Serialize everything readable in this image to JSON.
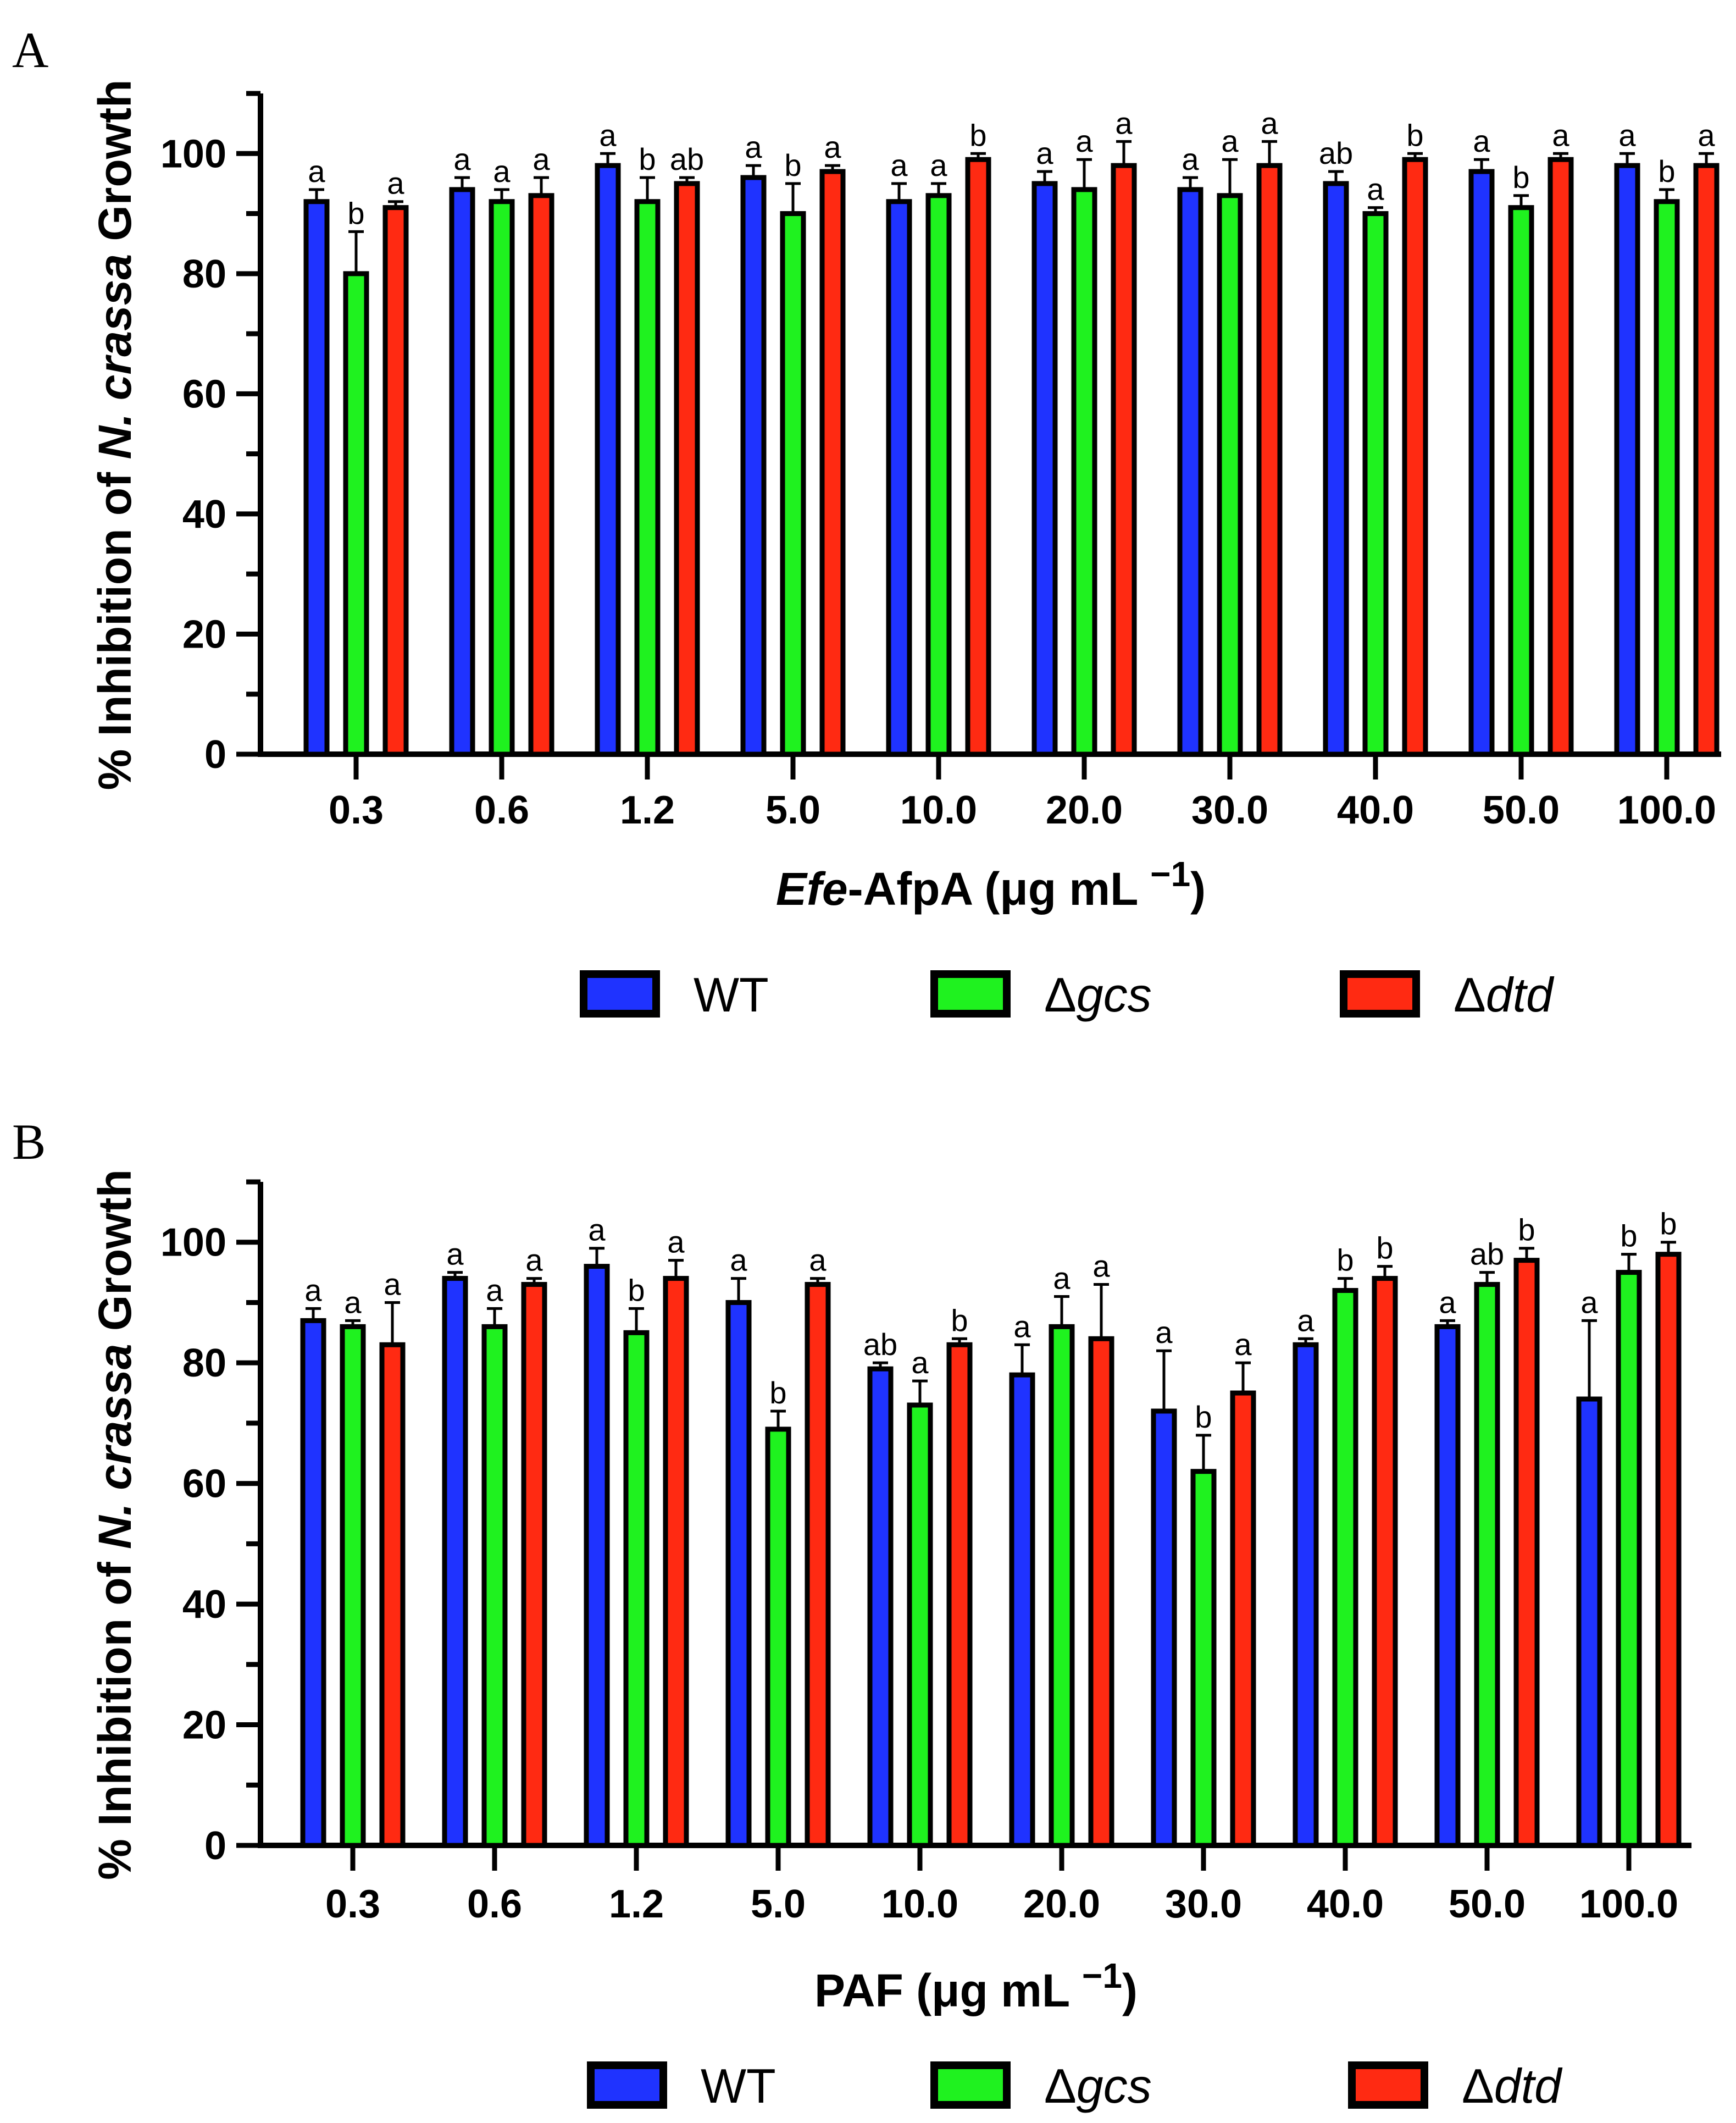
{
  "colors": {
    "WT": "#1f33ff",
    "gcs": "#1ff21f",
    "dtd": "#ff2a12",
    "axis": "#000000"
  },
  "legend": [
    {
      "key": "WT",
      "label": "WT"
    },
    {
      "key": "gcs",
      "label": "Δgcs"
    },
    {
      "key": "dtd",
      "label": "Δdtd"
    }
  ],
  "chart_data": [
    {
      "panel": "A",
      "type": "bar",
      "ylabel": "% Inhibition of N. crassa Growth",
      "xlabel": "Efe-AfpA (μg mL −1)",
      "ylim": [
        0,
        110
      ],
      "yticks": [
        0,
        20,
        40,
        60,
        80,
        100
      ],
      "categories": [
        "0.3",
        "0.6",
        "1.2",
        "5.0",
        "10.0",
        "20.0",
        "30.0",
        "40.0",
        "50.0",
        "100.0"
      ],
      "series": [
        {
          "key": "WT",
          "name": "WT",
          "values": [
            92,
            94,
            98,
            96,
            92,
            95,
            94,
            95,
            97,
            98
          ],
          "errors": [
            2,
            2,
            2,
            2,
            3,
            2,
            2,
            2,
            2,
            2
          ],
          "labels": [
            "a",
            "a",
            "a",
            "a",
            "a",
            "a",
            "a",
            "ab",
            "a",
            "a"
          ]
        },
        {
          "key": "gcs",
          "name": "Δgcs",
          "values": [
            80,
            92,
            92,
            90,
            93,
            94,
            93,
            90,
            91,
            92
          ],
          "errors": [
            7,
            2,
            4,
            5,
            2,
            5,
            6,
            1,
            2,
            2
          ],
          "labels": [
            "b",
            "a",
            "b",
            "b",
            "a",
            "a",
            "a",
            "a",
            "b",
            "b"
          ]
        },
        {
          "key": "dtd",
          "name": "Δdtd",
          "values": [
            91,
            93,
            95,
            97,
            99,
            98,
            98,
            99,
            99,
            98
          ],
          "errors": [
            1,
            3,
            1,
            1,
            1,
            4,
            4,
            1,
            1,
            2
          ],
          "labels": [
            "a",
            "a",
            "ab",
            "a",
            "b",
            "a",
            "a",
            "b",
            "a",
            "a"
          ]
        }
      ]
    },
    {
      "panel": "B",
      "type": "bar",
      "ylabel": "% Inhibition of N. crassa Growth",
      "xlabel": "PAF (μg mL −1)",
      "ylim": [
        0,
        110
      ],
      "yticks": [
        0,
        20,
        40,
        60,
        80,
        100
      ],
      "categories": [
        "0.3",
        "0.6",
        "1.2",
        "5.0",
        "10.0",
        "20.0",
        "30.0",
        "40.0",
        "50.0",
        "100.0"
      ],
      "series": [
        {
          "key": "WT",
          "name": "WT",
          "values": [
            87,
            94,
            96,
            90,
            79,
            78,
            72,
            83,
            86,
            74
          ],
          "errors": [
            2,
            1,
            3,
            4,
            1,
            5,
            10,
            1,
            1,
            13
          ],
          "labels": [
            "a",
            "a",
            "a",
            "a",
            "ab",
            "a",
            "a",
            "a",
            "a",
            "a"
          ]
        },
        {
          "key": "gcs",
          "name": "Δgcs",
          "values": [
            86,
            86,
            85,
            69,
            73,
            86,
            62,
            92,
            93,
            95
          ],
          "errors": [
            1,
            3,
            4,
            3,
            4,
            5,
            6,
            2,
            2,
            3
          ],
          "labels": [
            "a",
            "a",
            "b",
            "b",
            "a",
            "a",
            "b",
            "b",
            "ab",
            "b"
          ]
        },
        {
          "key": "dtd",
          "name": "Δdtd",
          "values": [
            83,
            93,
            94,
            93,
            83,
            84,
            75,
            94,
            97,
            98
          ],
          "errors": [
            7,
            1,
            3,
            1,
            1,
            9,
            5,
            2,
            2,
            2
          ],
          "labels": [
            "a",
            "a",
            "a",
            "a",
            "b",
            "a",
            "a",
            "b",
            "b",
            "b"
          ]
        }
      ]
    }
  ]
}
